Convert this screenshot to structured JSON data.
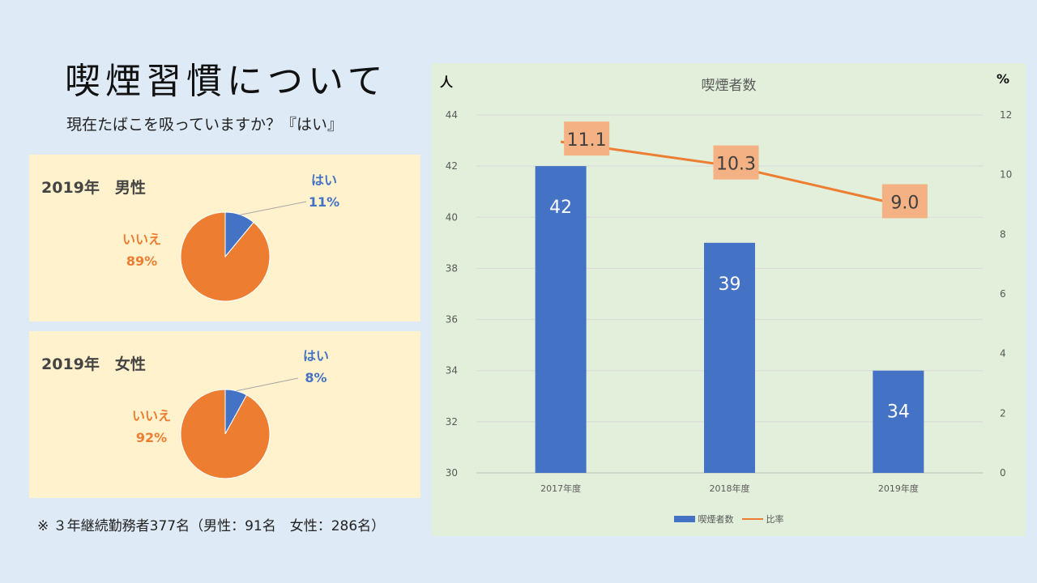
{
  "slide": {
    "title": "喫煙習慣について",
    "subtitle": "現在たばこを吸っていますか？『はい』",
    "footnote": "※ ３年継続勤務者377名（男性：91名　女性：286名）"
  },
  "colors": {
    "blue": "#4472c4",
    "orange": "#ed7d31",
    "label_bg": "#f4b183"
  },
  "chart_data": [
    {
      "type": "pie",
      "title": "2019年　男性",
      "slices": [
        {
          "label": "はい",
          "value": 11,
          "value_label": "11%"
        },
        {
          "label": "いいえ",
          "value": 89,
          "value_label": "89%"
        }
      ]
    },
    {
      "type": "pie",
      "title": "2019年　女性",
      "slices": [
        {
          "label": "はい",
          "value": 8,
          "value_label": "8%"
        },
        {
          "label": "いいえ",
          "value": 92,
          "value_label": "92%"
        }
      ]
    },
    {
      "type": "bar",
      "title": "喫煙者数",
      "categories": [
        "2017年度",
        "2018年度",
        "2019年度"
      ],
      "series": [
        {
          "name": "喫煙者数",
          "type": "bar",
          "axis": "left",
          "values": [
            42,
            39,
            34
          ]
        },
        {
          "name": "比率",
          "type": "line",
          "axis": "right",
          "values": [
            11.1,
            10.3,
            9.0
          ],
          "value_labels": [
            "11.1",
            "10.3",
            "9.0"
          ]
        }
      ],
      "y_left": {
        "unit": "人",
        "range": [
          30,
          44
        ],
        "ticks": [
          30,
          32,
          34,
          36,
          38,
          40,
          42,
          44
        ]
      },
      "y_right": {
        "unit": "%",
        "range": [
          0,
          12
        ],
        "ticks": [
          0,
          2,
          4,
          6,
          8,
          10,
          12
        ]
      },
      "grid": true,
      "legend": "bottom"
    }
  ]
}
